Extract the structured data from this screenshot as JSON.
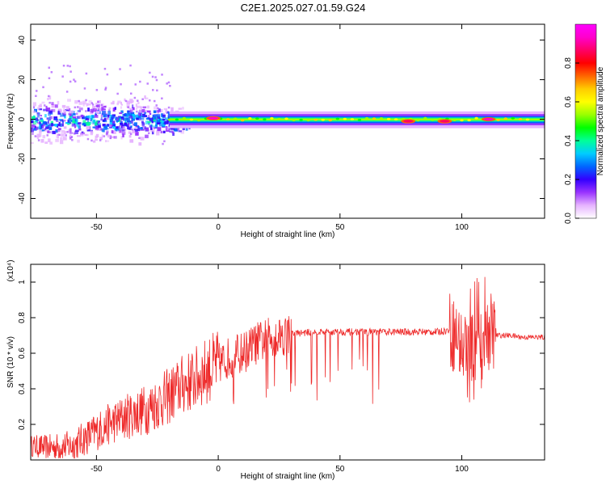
{
  "figure": {
    "title": "C2E1.2025.027.01.59.G24"
  },
  "chart_data": [
    {
      "type": "heatmap",
      "title": "C2E1.2025.027.01.59.G24",
      "xlabel": "Height of straight line (km)",
      "ylabel": "Frequency (Hz)",
      "xlim": [
        -77,
        134
      ],
      "ylim": [
        -50,
        48
      ],
      "x_ticks": [
        -50,
        0,
        50,
        100
      ],
      "y_ticks": [
        -40,
        -20,
        0,
        20,
        40
      ],
      "colorbar": {
        "label": "Normalized spectral amplitude",
        "range": [
          0.0,
          1.0
        ],
        "ticks": [
          "0.0",
          "0.2",
          "0.4",
          "0.6",
          "0.8"
        ],
        "colors": [
          "#ffffff",
          "#e6b3ff",
          "#9933ff",
          "#3300ff",
          "#0066ff",
          "#00ccff",
          "#00ff99",
          "#00ff00",
          "#99ff00",
          "#ffff00",
          "#ffcc00",
          "#ff6600",
          "#ff0000",
          "#ff0066",
          "#ff00cc",
          "#ff00ff"
        ]
      },
      "bands": [
        {
          "x0": -77,
          "x1": -20,
          "f_low": -8,
          "f_high": 8,
          "amplitude": 0.2,
          "description": "broadband noisy region"
        },
        {
          "x0": -20,
          "x1": 134,
          "f_low": -3,
          "f_high": 2,
          "amplitude": 0.45
        }
      ],
      "hotspots": [
        {
          "x": -2,
          "f": 0.5,
          "amplitude": 0.9
        },
        {
          "x": 78,
          "f": -1,
          "amplitude": 0.85
        },
        {
          "x": 93,
          "f": -1,
          "amplitude": 0.85
        },
        {
          "x": 111,
          "f": 0,
          "amplitude": 0.95
        }
      ]
    },
    {
      "type": "line",
      "xlabel": "Height of straight line (km)",
      "ylabel": "SNR (10 * v/v)",
      "y_exponent_label": "(x10⁴)",
      "xlim": [
        -77,
        134
      ],
      "ylim": [
        0,
        1.1
      ],
      "x_ticks": [
        -50,
        0,
        50,
        100
      ],
      "y_ticks": [
        0.2,
        0.4,
        0.6,
        0.8,
        1
      ],
      "y_tick_labels": [
        "0.2",
        "0.4",
        "0.6",
        "0.8",
        "1"
      ],
      "series": [
        {
          "color": "#ee2a2a",
          "x": [
            -77,
            -70,
            -60,
            -55,
            -50,
            -45,
            -40,
            -35,
            -30,
            -25,
            -20,
            -15,
            -10,
            -5,
            0,
            5,
            10,
            15,
            20,
            25,
            30,
            40,
            50,
            60,
            70,
            80,
            90,
            95,
            98,
            100,
            102,
            104,
            106,
            108,
            110,
            112,
            114,
            120,
            125,
            134
          ],
          "y": [
            0.08,
            0.07,
            0.08,
            0.12,
            0.16,
            0.2,
            0.23,
            0.26,
            0.28,
            0.32,
            0.36,
            0.42,
            0.45,
            0.5,
            0.54,
            0.58,
            0.6,
            0.65,
            0.68,
            0.7,
            0.71,
            0.72,
            0.72,
            0.72,
            0.72,
            0.72,
            0.72,
            0.73,
            0.69,
            0.63,
            0.66,
            0.6,
            0.68,
            0.62,
            0.7,
            0.74,
            0.7,
            0.7,
            0.69,
            0.69
          ]
        }
      ]
    }
  ]
}
